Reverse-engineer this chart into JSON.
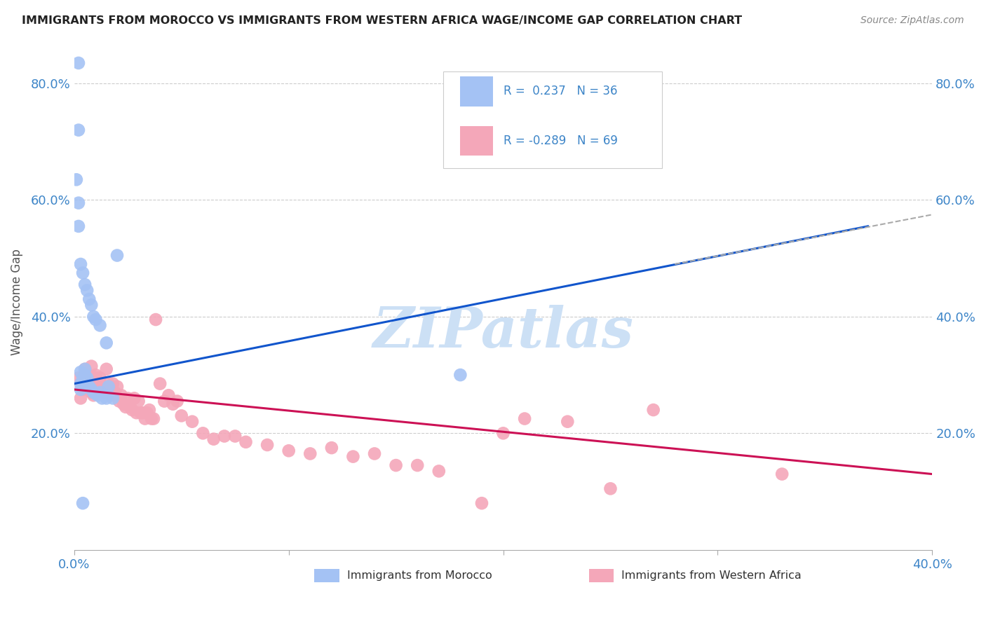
{
  "title": "IMMIGRANTS FROM MOROCCO VS IMMIGRANTS FROM WESTERN AFRICA WAGE/INCOME GAP CORRELATION CHART",
  "source": "Source: ZipAtlas.com",
  "ylabel_label": "Wage/Income Gap",
  "xlim": [
    0.0,
    0.4
  ],
  "ylim": [
    0.0,
    0.85
  ],
  "xtick_vals": [
    0.0,
    0.1,
    0.2,
    0.3,
    0.4
  ],
  "xtick_labels": [
    "0.0%",
    "",
    "",
    "",
    "40.0%"
  ],
  "ytick_vals": [
    0.2,
    0.4,
    0.6,
    0.8
  ],
  "ytick_labels": [
    "20.0%",
    "40.0%",
    "60.0%",
    "80.0%"
  ],
  "color_morocco": "#a4c2f4",
  "color_western_africa": "#f4a7b9",
  "color_morocco_line": "#1155cc",
  "color_western_africa_line": "#cc1155",
  "color_dashed_line": "#aaaaaa",
  "morocco_scatter_x": [
    0.001,
    0.002,
    0.002,
    0.003,
    0.003,
    0.004,
    0.005,
    0.005,
    0.006,
    0.007,
    0.008,
    0.009,
    0.01,
    0.011,
    0.012,
    0.013,
    0.014,
    0.015,
    0.016,
    0.018,
    0.002,
    0.003,
    0.004,
    0.005,
    0.006,
    0.007,
    0.008,
    0.009,
    0.01,
    0.012,
    0.003,
    0.004,
    0.015,
    0.02,
    0.18,
    0.002
  ],
  "morocco_scatter_y": [
    0.635,
    0.595,
    0.555,
    0.305,
    0.285,
    0.295,
    0.3,
    0.31,
    0.295,
    0.28,
    0.275,
    0.27,
    0.268,
    0.265,
    0.27,
    0.26,
    0.265,
    0.26,
    0.28,
    0.26,
    0.72,
    0.49,
    0.475,
    0.455,
    0.445,
    0.43,
    0.42,
    0.4,
    0.395,
    0.385,
    0.275,
    0.08,
    0.355,
    0.505,
    0.3,
    0.835
  ],
  "western_africa_scatter_x": [
    0.002,
    0.003,
    0.003,
    0.004,
    0.005,
    0.005,
    0.006,
    0.007,
    0.008,
    0.008,
    0.009,
    0.01,
    0.01,
    0.011,
    0.012,
    0.013,
    0.014,
    0.015,
    0.016,
    0.017,
    0.018,
    0.019,
    0.02,
    0.021,
    0.022,
    0.023,
    0.024,
    0.025,
    0.026,
    0.027,
    0.028,
    0.029,
    0.03,
    0.031,
    0.032,
    0.033,
    0.034,
    0.035,
    0.036,
    0.037,
    0.038,
    0.04,
    0.042,
    0.044,
    0.046,
    0.048,
    0.05,
    0.055,
    0.06,
    0.065,
    0.07,
    0.075,
    0.08,
    0.09,
    0.1,
    0.11,
    0.12,
    0.13,
    0.14,
    0.15,
    0.16,
    0.17,
    0.19,
    0.21,
    0.23,
    0.27,
    0.33,
    0.2,
    0.25
  ],
  "western_africa_scatter_y": [
    0.295,
    0.285,
    0.26,
    0.275,
    0.31,
    0.295,
    0.285,
    0.275,
    0.315,
    0.27,
    0.265,
    0.295,
    0.3,
    0.285,
    0.295,
    0.28,
    0.27,
    0.31,
    0.285,
    0.265,
    0.285,
    0.27,
    0.28,
    0.255,
    0.265,
    0.25,
    0.245,
    0.26,
    0.245,
    0.24,
    0.26,
    0.235,
    0.255,
    0.235,
    0.235,
    0.225,
    0.235,
    0.24,
    0.225,
    0.225,
    0.395,
    0.285,
    0.255,
    0.265,
    0.25,
    0.255,
    0.23,
    0.22,
    0.2,
    0.19,
    0.195,
    0.195,
    0.185,
    0.18,
    0.17,
    0.165,
    0.175,
    0.16,
    0.165,
    0.145,
    0.145,
    0.135,
    0.08,
    0.225,
    0.22,
    0.24,
    0.13,
    0.2,
    0.105
  ],
  "morocco_line_x": [
    0.0,
    0.37
  ],
  "morocco_line_y": [
    0.285,
    0.555
  ],
  "wa_line_x": [
    0.0,
    0.4
  ],
  "wa_line_y": [
    0.275,
    0.13
  ],
  "dashed_line_x": [
    0.28,
    0.4
  ],
  "dashed_line_y": [
    0.49,
    0.575
  ],
  "background_color": "#ffffff",
  "watermark_text": "ZIPatlas",
  "watermark_color": "#cce0f5"
}
